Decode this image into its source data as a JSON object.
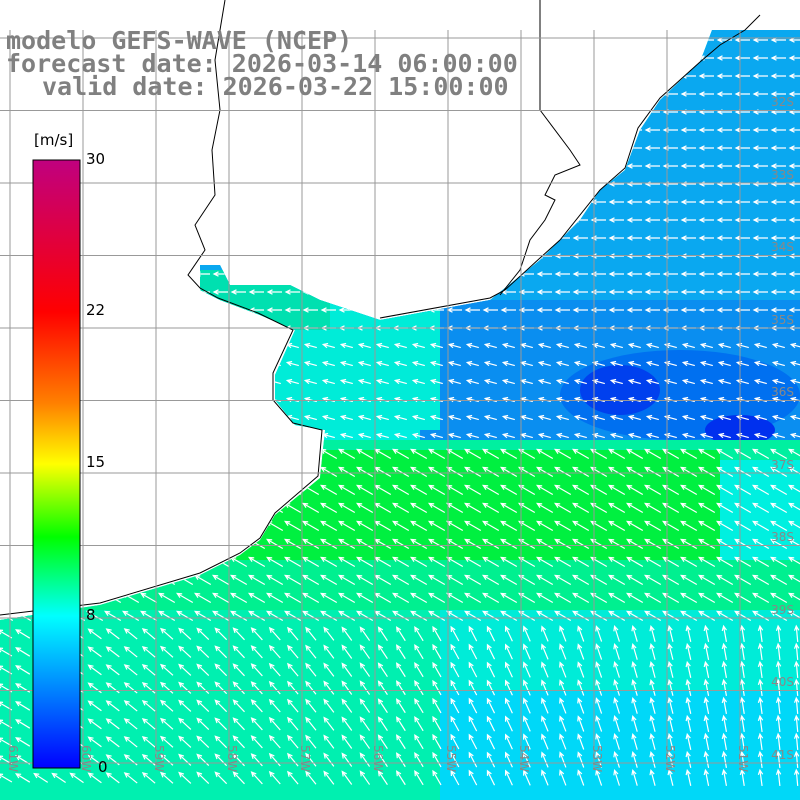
{
  "title": {
    "model": "modelo GEFS-WAVE (NCEP)",
    "forecast": "forecast date: 2026-03-14 06:00:00",
    "valid": "valid date: 2026-03-22 15:00:00"
  },
  "colorbar": {
    "unit": "[m/s]",
    "ticks": [
      "30",
      "22",
      "15",
      "8",
      "0"
    ],
    "colors": [
      "#c0007f",
      "#ff0000",
      "#ff8000",
      "#ffff00",
      "#00ff00",
      "#00ffff",
      "#0000ff"
    ]
  },
  "lat_labels": [
    "32S",
    "33S",
    "34S",
    "35S",
    "36S",
    "37S",
    "38S",
    "39S",
    "40S",
    "41S"
  ],
  "lon_labels": [
    "61W",
    "60W",
    "59W",
    "58W",
    "57W",
    "56W",
    "55W",
    "54W",
    "53W",
    "52W",
    "51W"
  ]
}
